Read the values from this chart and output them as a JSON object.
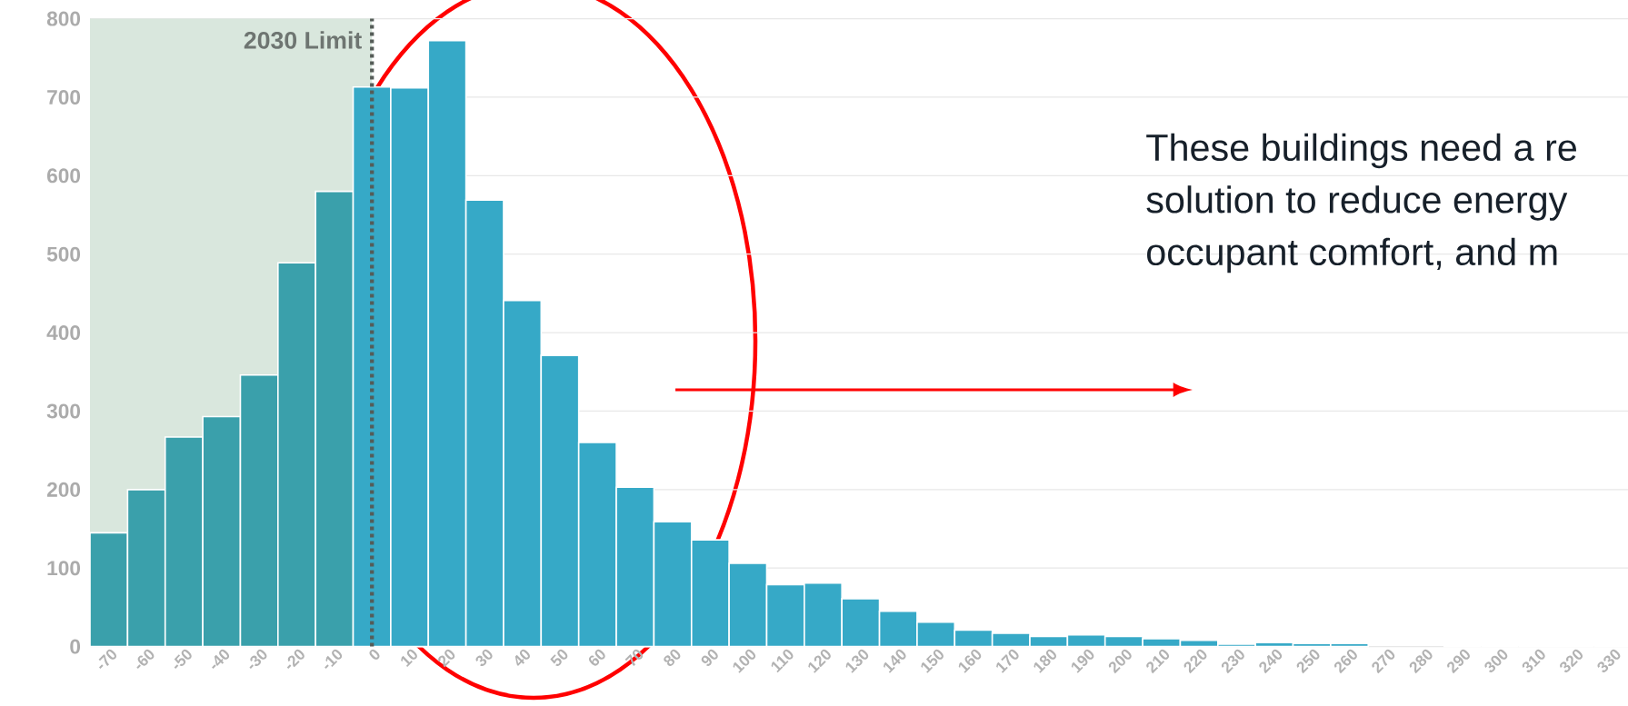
{
  "chart_data": {
    "type": "bar",
    "categories": [
      "-70",
      "-60",
      "-50",
      "-40",
      "-30",
      "-20",
      "-10",
      "0",
      "10",
      "20",
      "30",
      "40",
      "50",
      "60",
      "70",
      "80",
      "90",
      "100",
      "110",
      "120",
      "130",
      "140",
      "150",
      "160",
      "170",
      "180",
      "190",
      "200",
      "210",
      "220",
      "230",
      "240",
      "250",
      "260",
      "270",
      "280",
      "290",
      "300",
      "310",
      "320",
      "330"
    ],
    "values": [
      145,
      200,
      267,
      293,
      346,
      489,
      580,
      713,
      712,
      772,
      569,
      441,
      371,
      260,
      203,
      159,
      136,
      106,
      79,
      81,
      61,
      45,
      31,
      21,
      17,
      13,
      15,
      13,
      10,
      8,
      3,
      5,
      4,
      4,
      null,
      null,
      0,
      0,
      0,
      0,
      0
    ],
    "colors": [
      "#3aa0ab",
      "#3aa0ab",
      "#3aa0ab",
      "#3aa0ab",
      "#3aa0ab",
      "#3aa0ab",
      "#3aa0ab",
      "#36a9c7",
      "#36a9c7",
      "#36a9c7",
      "#36a9c7",
      "#36a9c7",
      "#36a9c7",
      "#36a9c7",
      "#36a9c7",
      "#36a9c7",
      "#36a9c7",
      "#36a9c7",
      "#36a9c7",
      "#36a9c7",
      "#36a9c7",
      "#36a9c7",
      "#36a9c7",
      "#36a9c7",
      "#36a9c7",
      "#36a9c7",
      "#36a9c7",
      "#36a9c7",
      "#36a9c7",
      "#36a9c7",
      "#36a9c7",
      "#36a9c7",
      "#36a9c7",
      "#36a9c7",
      "#36a9c7",
      "#36a9c7",
      "#36a9c7",
      "#36a9c7",
      "#36a9c7",
      "#36a9c7",
      "#36a9c7"
    ],
    "ylim": [
      0,
      800
    ],
    "yticks": [
      0,
      100,
      200,
      300,
      400,
      500,
      600,
      700,
      800
    ],
    "grid": "y",
    "bands": [
      {
        "axis": "x",
        "from": "-70",
        "to": "0",
        "color": "#d9e7dd"
      }
    ],
    "ref_lines": [
      {
        "axis": "x",
        "value": "0",
        "label": "2030 Limit",
        "color": "#555c58",
        "line_style": "dotted"
      }
    ],
    "annotations": [
      "These buildings need a re",
      "solution to reduce energy",
      "occupant comfort, and m"
    ]
  }
}
